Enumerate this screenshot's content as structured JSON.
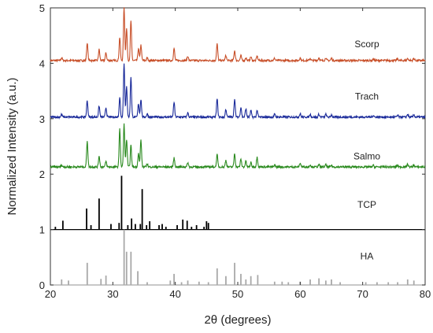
{
  "chart_data": {
    "type": "line",
    "title": "",
    "xlabel": "2θ (degrees)",
    "ylabel": "Normalized Intensity (a.u.)",
    "xlim": [
      20,
      80
    ],
    "ylim": [
      0,
      5
    ],
    "x_ticks": [
      "20",
      "30",
      "40",
      "50",
      "60",
      "70",
      "80"
    ],
    "y_ticks": [
      "0",
      "1",
      "2",
      "3",
      "4",
      "5"
    ],
    "grid": false,
    "series": [
      {
        "name": "Scorp",
        "color": "#c8502a",
        "baseline": 4.05,
        "peaks": [
          [
            21.8,
            0.05
          ],
          [
            25.9,
            0.32
          ],
          [
            27.8,
            0.2
          ],
          [
            28.9,
            0.14
          ],
          [
            31.1,
            0.42
          ],
          [
            31.8,
            0.96
          ],
          [
            32.2,
            0.58
          ],
          [
            32.9,
            0.72
          ],
          [
            34.1,
            0.22
          ],
          [
            34.5,
            0.28
          ],
          [
            35.5,
            0.05
          ],
          [
            39.8,
            0.22
          ],
          [
            42.0,
            0.08
          ],
          [
            46.7,
            0.3
          ],
          [
            48.1,
            0.09
          ],
          [
            49.5,
            0.18
          ],
          [
            50.5,
            0.09
          ],
          [
            51.3,
            0.05
          ],
          [
            52.1,
            0.07
          ],
          [
            53.1,
            0.08
          ],
          [
            55.9,
            0.04
          ],
          [
            60.0,
            0.05
          ],
          [
            61.6,
            0.04
          ],
          [
            63.0,
            0.05
          ],
          [
            64.1,
            0.05
          ],
          [
            65.0,
            0.04
          ],
          [
            71.7,
            0.03
          ],
          [
            75.6,
            0.03
          ],
          [
            77.2,
            0.04
          ],
          [
            78.2,
            0.04
          ]
        ]
      },
      {
        "name": "Trach",
        "color": "#1a2a9a",
        "baseline": 3.03,
        "peaks": [
          [
            21.8,
            0.05
          ],
          [
            25.9,
            0.3
          ],
          [
            27.8,
            0.2
          ],
          [
            28.9,
            0.17
          ],
          [
            31.1,
            0.35
          ],
          [
            31.8,
            0.97
          ],
          [
            32.2,
            0.55
          ],
          [
            32.9,
            0.73
          ],
          [
            34.1,
            0.24
          ],
          [
            34.5,
            0.32
          ],
          [
            35.5,
            0.06
          ],
          [
            39.8,
            0.27
          ],
          [
            42.0,
            0.08
          ],
          [
            46.7,
            0.33
          ],
          [
            48.1,
            0.14
          ],
          [
            49.5,
            0.32
          ],
          [
            50.5,
            0.18
          ],
          [
            51.3,
            0.15
          ],
          [
            52.1,
            0.12
          ],
          [
            53.1,
            0.12
          ],
          [
            55.9,
            0.05
          ],
          [
            60.0,
            0.06
          ],
          [
            61.6,
            0.05
          ],
          [
            63.0,
            0.05
          ],
          [
            64.1,
            0.05
          ],
          [
            65.0,
            0.04
          ],
          [
            71.7,
            0.03
          ],
          [
            75.6,
            0.03
          ],
          [
            77.2,
            0.05
          ],
          [
            78.2,
            0.04
          ]
        ]
      },
      {
        "name": "Salmo",
        "color": "#2a8a1e",
        "baseline": 2.13,
        "peaks": [
          [
            21.8,
            0.03
          ],
          [
            25.9,
            0.47
          ],
          [
            27.8,
            0.2
          ],
          [
            28.9,
            0.1
          ],
          [
            31.1,
            0.68
          ],
          [
            31.8,
            0.77
          ],
          [
            32.2,
            0.5
          ],
          [
            32.9,
            0.39
          ],
          [
            34.1,
            0.25
          ],
          [
            34.5,
            0.49
          ],
          [
            35.5,
            0.06
          ],
          [
            39.8,
            0.16
          ],
          [
            42.0,
            0.08
          ],
          [
            46.7,
            0.22
          ],
          [
            48.1,
            0.12
          ],
          [
            49.5,
            0.24
          ],
          [
            50.5,
            0.14
          ],
          [
            51.3,
            0.1
          ],
          [
            52.1,
            0.08
          ],
          [
            53.1,
            0.18
          ],
          [
            55.9,
            0.04
          ],
          [
            60.0,
            0.07
          ],
          [
            61.6,
            0.04
          ],
          [
            63.0,
            0.04
          ],
          [
            64.1,
            0.04
          ],
          [
            65.0,
            0.03
          ],
          [
            71.7,
            0.03
          ],
          [
            75.6,
            0.03
          ],
          [
            77.2,
            0.05
          ],
          [
            78.2,
            0.04
          ]
        ]
      },
      {
        "name": "TCP",
        "color": "#000000",
        "baseline": 1.0,
        "sticks": [
          [
            20.8,
            0.05
          ],
          [
            22.0,
            0.16
          ],
          [
            25.8,
            0.38
          ],
          [
            26.5,
            0.08
          ],
          [
            27.8,
            0.56
          ],
          [
            29.7,
            0.1
          ],
          [
            31.0,
            0.12
          ],
          [
            31.4,
            0.97
          ],
          [
            32.4,
            0.08
          ],
          [
            33.0,
            0.2
          ],
          [
            33.6,
            0.1
          ],
          [
            34.4,
            0.1
          ],
          [
            34.7,
            0.73
          ],
          [
            35.4,
            0.08
          ],
          [
            35.9,
            0.15
          ],
          [
            37.4,
            0.08
          ],
          [
            37.9,
            0.1
          ],
          [
            38.5,
            0.05
          ],
          [
            40.3,
            0.08
          ],
          [
            41.2,
            0.18
          ],
          [
            41.9,
            0.16
          ],
          [
            42.6,
            0.05
          ],
          [
            43.4,
            0.08
          ],
          [
            44.6,
            0.05
          ],
          [
            45.0,
            0.15
          ],
          [
            45.3,
            0.12
          ]
        ]
      },
      {
        "name": "HA",
        "color": "#a8a8a8",
        "baseline": 0.0,
        "sticks": [
          [
            21.8,
            0.1
          ],
          [
            22.9,
            0.08
          ],
          [
            25.9,
            0.4
          ],
          [
            28.1,
            0.11
          ],
          [
            28.9,
            0.17
          ],
          [
            31.8,
            1.0
          ],
          [
            32.2,
            0.6
          ],
          [
            32.9,
            0.6
          ],
          [
            34.0,
            0.25
          ],
          [
            35.5,
            0.05
          ],
          [
            39.2,
            0.08
          ],
          [
            39.8,
            0.2
          ],
          [
            41.0,
            0.05
          ],
          [
            42.0,
            0.08
          ],
          [
            43.8,
            0.06
          ],
          [
            45.3,
            0.05
          ],
          [
            46.7,
            0.3
          ],
          [
            48.1,
            0.16
          ],
          [
            49.5,
            0.4
          ],
          [
            50.5,
            0.2
          ],
          [
            51.3,
            0.1
          ],
          [
            52.1,
            0.16
          ],
          [
            53.2,
            0.18
          ],
          [
            55.9,
            0.06
          ],
          [
            57.1,
            0.06
          ],
          [
            58.1,
            0.05
          ],
          [
            60.0,
            0.06
          ],
          [
            61.6,
            0.1
          ],
          [
            63.0,
            0.12
          ],
          [
            64.1,
            0.08
          ],
          [
            65.0,
            0.1
          ],
          [
            66.4,
            0.05
          ],
          [
            70.5,
            0.05
          ],
          [
            72.3,
            0.05
          ],
          [
            74.1,
            0.05
          ],
          [
            75.6,
            0.05
          ],
          [
            77.2,
            0.1
          ],
          [
            78.2,
            0.08
          ]
        ]
      }
    ]
  }
}
